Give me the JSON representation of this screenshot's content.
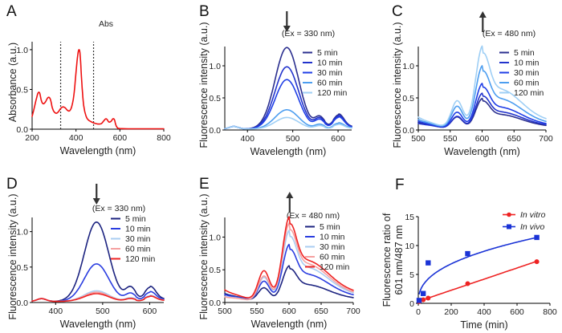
{
  "chart_data": [
    {
      "id": "A",
      "type": "line",
      "panel_label": "A",
      "title": "Abs",
      "xlabel": "Wavelength (nm)",
      "ylabel": "Absorbance (a.u.)",
      "xlim": [
        200,
        800
      ],
      "ylim": [
        0,
        1.1
      ],
      "xticks": [
        200,
        400,
        600,
        800
      ],
      "yticks": [
        0.0,
        0.5,
        1.0
      ],
      "ytick_labels": [
        "0.0",
        "0.5",
        "1.0"
      ],
      "vlines": [
        330,
        480
      ],
      "series": [
        {
          "name": "Abs",
          "color": "#ee1111",
          "x": [
            200,
            210,
            220,
            228,
            235,
            242,
            250,
            260,
            270,
            278,
            285,
            292,
            300,
            310,
            320,
            330,
            340,
            350,
            360,
            370,
            380,
            390,
            398,
            405,
            410,
            414,
            418,
            422,
            428,
            435,
            445,
            455,
            465,
            480,
            500,
            515,
            525,
            535,
            542,
            550,
            560,
            568,
            575,
            582,
            590,
            600,
            650,
            700,
            800
          ],
          "y": [
            0.16,
            0.27,
            0.39,
            0.46,
            0.45,
            0.36,
            0.32,
            0.34,
            0.39,
            0.4,
            0.36,
            0.27,
            0.22,
            0.2,
            0.22,
            0.26,
            0.28,
            0.27,
            0.24,
            0.23,
            0.28,
            0.42,
            0.65,
            0.86,
            0.97,
            1.0,
            0.96,
            0.8,
            0.52,
            0.3,
            0.17,
            0.12,
            0.1,
            0.08,
            0.065,
            0.07,
            0.1,
            0.13,
            0.12,
            0.09,
            0.1,
            0.13,
            0.12,
            0.05,
            0.015,
            0.008,
            0.005,
            0.005,
            0.005
          ]
        }
      ]
    },
    {
      "id": "B",
      "type": "line",
      "panel_label": "B",
      "xlabel": "Wavelength (nm)",
      "ylabel": "Fluorescence intensity (a.u.)",
      "annotation": "(Ex = 330 nm)",
      "arrow": "down",
      "arrow_x": 487,
      "xlim": [
        350,
        630
      ],
      "ylim": [
        0,
        1.3
      ],
      "xticks": [
        400,
        500,
        600
      ],
      "yticks": [
        0.0,
        0.5,
        1.0
      ],
      "ytick_labels": [
        "0.0",
        "0.5",
        "1.0"
      ],
      "legend_position": "top-right",
      "series": [
        {
          "name": "5 min",
          "color": "#2b2f8f",
          "peak": 1.27,
          "tail": [
            0.18,
            0.22,
            0.12
          ]
        },
        {
          "name": "10 min",
          "color": "#2233cc",
          "peak": 0.97,
          "tail": [
            0.16,
            0.2,
            0.1
          ]
        },
        {
          "name": "30 min",
          "color": "#1f3ee6",
          "peak": 0.77,
          "tail": [
            0.14,
            0.18,
            0.09
          ]
        },
        {
          "name": "60 min",
          "color": "#4d9ef0",
          "peak": 0.3,
          "tail": [
            0.07,
            0.09,
            0.06
          ]
        },
        {
          "name": "120 min",
          "color": "#9fcff5",
          "peak": 0.18,
          "tail": [
            0.05,
            0.07,
            0.04
          ]
        }
      ]
    },
    {
      "id": "C",
      "type": "line",
      "panel_label": "C",
      "xlabel": "Wavelength (nm)",
      "ylabel": "Fluorescence intensity (a.u.)",
      "annotation": "(Ex = 480 nm)",
      "arrow": "up",
      "arrow_x": 601,
      "xlim": [
        500,
        700
      ],
      "ylim": [
        0,
        1.3
      ],
      "xticks": [
        500,
        550,
        600,
        650,
        700
      ],
      "yticks": [
        0.0,
        0.5,
        1.0
      ],
      "ytick_labels": [
        "0.0",
        "0.5",
        "1.0"
      ],
      "legend_position": "top-right",
      "series": [
        {
          "name": "5 min",
          "color": "#2b2f8f",
          "start": 0.12,
          "shoulder": 0.19,
          "peak": 0.48,
          "end": 0.05
        },
        {
          "name": "10 min",
          "color": "#2233cc",
          "start": 0.1,
          "shoulder": 0.2,
          "peak": 0.56,
          "end": 0.06
        },
        {
          "name": "30 min",
          "color": "#1f3ee6",
          "start": 0.14,
          "shoulder": 0.26,
          "peak": 0.71,
          "end": 0.07
        },
        {
          "name": "60 min",
          "color": "#4d9ef0",
          "start": 0.17,
          "shoulder": 0.35,
          "peak": 0.98,
          "end": 0.09
        },
        {
          "name": "120 min",
          "color": "#9fcff5",
          "start": 0.21,
          "shoulder": 0.43,
          "peak": 1.28,
          "end": 0.12
        }
      ]
    },
    {
      "id": "D",
      "type": "line",
      "panel_label": "D",
      "xlabel": "Wavelength (nm)",
      "ylabel": "Fluorescence intensity (a.u.)",
      "annotation": "(Ex = 330 nm)",
      "arrow": "down",
      "arrow_x": 487,
      "xlim": [
        350,
        630
      ],
      "ylim": [
        0,
        1.2
      ],
      "xticks": [
        400,
        500,
        600
      ],
      "yticks": [
        0.0,
        0.5,
        1.0
      ],
      "ytick_labels": [
        "0.0",
        "0.5",
        "1.0"
      ],
      "legend_position": "top-right",
      "series": [
        {
          "name": "5 min",
          "color": "#1c2380",
          "peak": 1.12,
          "tail": [
            0.19,
            0.2,
            0.11
          ]
        },
        {
          "name": "10 min",
          "color": "#2a3de0",
          "peak": 0.53,
          "tail": [
            0.11,
            0.13,
            0.08
          ]
        },
        {
          "name": "30 min",
          "color": "#a9cdf2",
          "peak": 0.15,
          "tail": [
            0.05,
            0.08,
            0.06
          ]
        },
        {
          "name": "60 min",
          "color": "#f5a0a0",
          "peak": 0.13,
          "tail": [
            0.04,
            0.07,
            0.05
          ]
        },
        {
          "name": "120 min",
          "color": "#ee2222",
          "peak": 0.11,
          "tail": [
            0.04,
            0.07,
            0.05
          ]
        }
      ]
    },
    {
      "id": "E",
      "type": "line",
      "panel_label": "E",
      "xlabel": "Wavelength (nm)",
      "ylabel": "Fluorescence intensity (a.u.)",
      "annotation": "(Ex = 480 nm)",
      "arrow": "up",
      "arrow_x": 601,
      "xlim": [
        500,
        700
      ],
      "ylim": [
        0,
        1.3
      ],
      "xticks": [
        500,
        550,
        600,
        650,
        700
      ],
      "yticks": [
        0.0,
        0.5,
        1.0
      ],
      "ytick_labels": [
        "0.0",
        "0.5",
        "1.0"
      ],
      "legend_position": "top-right",
      "series": [
        {
          "name": "5 min",
          "color": "#1c2380",
          "start": 0.14,
          "shoulder": 0.21,
          "peak": 0.55,
          "end": 0.05
        },
        {
          "name": "10 min",
          "color": "#2a3de0",
          "start": 0.12,
          "shoulder": 0.31,
          "peak": 0.87,
          "end": 0.08
        },
        {
          "name": "30 min",
          "color": "#a9cdf2",
          "start": 0.09,
          "shoulder": 0.37,
          "peak": 1.08,
          "end": 0.1
        },
        {
          "name": "60 min",
          "color": "#f5a0a0",
          "start": 0.08,
          "shoulder": 0.39,
          "peak": 1.19,
          "end": 0.11
        },
        {
          "name": "120 min",
          "color": "#ee2222",
          "start": 0.2,
          "shoulder": 0.46,
          "peak": 1.28,
          "end": 0.13
        }
      ]
    },
    {
      "id": "F",
      "type": "scatter",
      "panel_label": "F",
      "xlabel": "Time (min)",
      "ylabel_lines": [
        "Fluorescence ratio of",
        "601 nm/487 nm"
      ],
      "xlim": [
        0,
        800
      ],
      "ylim": [
        0,
        15
      ],
      "xticks": [
        0,
        200,
        400,
        600,
        800
      ],
      "yticks": [
        0,
        5,
        10,
        15
      ],
      "ytick_labels": [
        "0",
        "5",
        "10",
        "15"
      ],
      "legend_position": "top-right",
      "series": [
        {
          "name": "In vitro",
          "color": "#ee2222",
          "marker": "circle",
          "fit": "linear",
          "x": [
            5,
            30,
            60,
            300,
            720
          ],
          "y": [
            0.3,
            0.6,
            0.9,
            3.4,
            7.2
          ]
        },
        {
          "name": "In vivo",
          "color": "#1a33d6",
          "marker": "square",
          "fit": "power",
          "x": [
            5,
            30,
            60,
            300,
            720
          ],
          "y": [
            0.5,
            1.7,
            7.0,
            8.6,
            11.4
          ]
        }
      ]
    }
  ]
}
